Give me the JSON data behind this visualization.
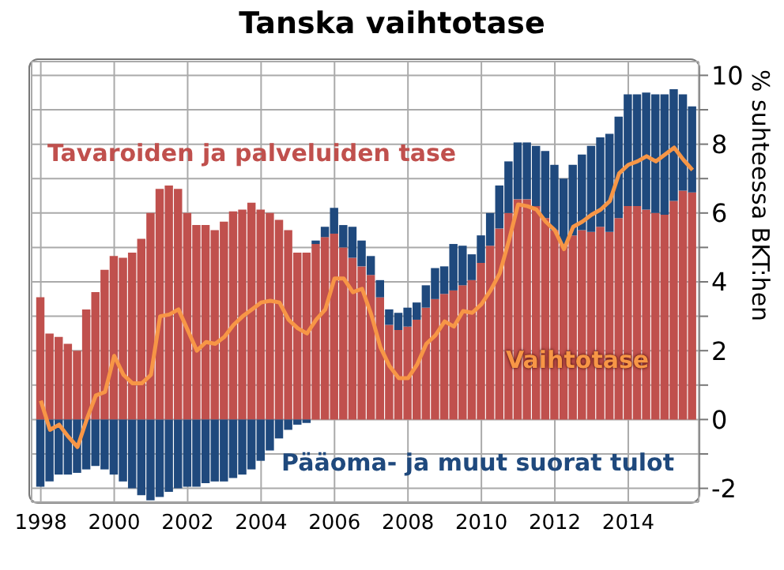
{
  "chart_data": {
    "type": "bar",
    "title": "Tanska vaihtotase",
    "ylabel": "% suhteessa BKT:hen",
    "stacked": true,
    "grid": true,
    "legend": false,
    "x": [
      "1998-01",
      "1998-04",
      "1998-07",
      "1998-10",
      "1999-01",
      "1999-04",
      "1999-07",
      "1999-10",
      "2000-01",
      "2000-04",
      "2000-07",
      "2000-10",
      "2001-01",
      "2001-04",
      "2001-07",
      "2001-10",
      "2002-01",
      "2002-04",
      "2002-07",
      "2002-10",
      "2003-01",
      "2003-04",
      "2003-07",
      "2003-10",
      "2004-01",
      "2004-04",
      "2004-07",
      "2004-10",
      "2005-01",
      "2005-04",
      "2005-07",
      "2005-10",
      "2006-01",
      "2006-04",
      "2006-07",
      "2006-10",
      "2007-01",
      "2007-04",
      "2007-07",
      "2007-10",
      "2008-01",
      "2008-04",
      "2008-07",
      "2008-10",
      "2009-01",
      "2009-04",
      "2009-07",
      "2009-10",
      "2010-01",
      "2010-04",
      "2010-07",
      "2010-10",
      "2011-01",
      "2011-04",
      "2011-07",
      "2011-10",
      "2012-01",
      "2012-04",
      "2012-07",
      "2012-10",
      "2013-01",
      "2013-04",
      "2013-07",
      "2013-10",
      "2014-01",
      "2014-04",
      "2014-07",
      "2014-10",
      "2015-01",
      "2015-04",
      "2015-07",
      "2015-10"
    ],
    "xlim": [
      "1997-10",
      "2015-12"
    ],
    "xticks": [
      "1998",
      "2000",
      "2002",
      "2004",
      "2006",
      "2008",
      "2010",
      "2012",
      "2014"
    ],
    "ylim": [
      -2.4,
      10.4
    ],
    "yticks": [
      {
        "value": -2,
        "label": "-2"
      },
      {
        "value": -1,
        "label": null
      },
      0,
      {
        "value": 1,
        "label": null
      },
      2,
      {
        "value": 3,
        "label": null
      },
      4,
      {
        "value": 5,
        "label": null
      },
      6,
      {
        "value": 7,
        "label": null
      },
      8,
      {
        "value": 9,
        "label": null
      },
      10
    ],
    "series": [
      {
        "name": "Tavaroiden ja palveluiden tase",
        "type": "bar",
        "color": "#c0504d",
        "values": [
          3.55,
          2.5,
          2.4,
          2.2,
          2.0,
          3.2,
          3.7,
          4.35,
          4.75,
          4.7,
          4.85,
          5.25,
          6.0,
          6.7,
          6.8,
          6.7,
          6.0,
          5.65,
          5.65,
          5.5,
          5.75,
          6.05,
          6.1,
          6.3,
          6.1,
          6.0,
          5.8,
          5.5,
          4.85,
          4.85,
          5.1,
          5.3,
          5.4,
          5.0,
          4.7,
          4.45,
          4.2,
          3.55,
          2.75,
          2.6,
          2.7,
          2.9,
          3.25,
          3.5,
          3.65,
          3.75,
          3.9,
          4.05,
          4.55,
          5.05,
          5.55,
          6.0,
          6.4,
          6.4,
          6.2,
          5.85,
          5.5,
          5.1,
          5.35,
          5.5,
          5.45,
          5.6,
          5.45,
          5.85,
          6.2,
          6.2,
          6.1,
          6.0,
          5.95,
          6.35,
          6.65,
          6.6
        ]
      },
      {
        "name": "Pääoma- ja muut suorat tulot",
        "type": "bar",
        "color": "#1f497d",
        "values": [
          -1.95,
          -1.8,
          -1.6,
          -1.6,
          -1.55,
          -1.45,
          -1.35,
          -1.45,
          -1.6,
          -1.8,
          -2.0,
          -2.2,
          -2.35,
          -2.25,
          -2.1,
          -2.0,
          -1.95,
          -1.95,
          -1.85,
          -1.8,
          -1.8,
          -1.7,
          -1.6,
          -1.45,
          -1.2,
          -0.9,
          -0.55,
          -0.3,
          -0.15,
          -0.1,
          0.1,
          0.3,
          0.75,
          0.65,
          0.9,
          0.75,
          0.55,
          0.5,
          0.45,
          0.5,
          0.55,
          0.5,
          0.65,
          0.9,
          0.8,
          1.35,
          1.15,
          0.75,
          0.8,
          0.95,
          1.25,
          1.5,
          1.65,
          1.65,
          1.75,
          1.95,
          1.9,
          1.9,
          2.05,
          2.2,
          2.5,
          2.6,
          2.85,
          2.95,
          3.25,
          3.25,
          3.4,
          3.45,
          3.5,
          3.25,
          2.8,
          2.5
        ]
      },
      {
        "name": "Vaihtotase",
        "type": "line",
        "color": "#f79646",
        "values": [
          0.55,
          -0.3,
          -0.15,
          -0.5,
          -0.8,
          0,
          0.7,
          0.8,
          1.85,
          1.3,
          1.05,
          1.05,
          1.3,
          3.0,
          3.05,
          3.2,
          2.6,
          2.0,
          2.25,
          2.2,
          2.4,
          2.75,
          3.0,
          3.2,
          3.4,
          3.45,
          3.4,
          2.9,
          2.65,
          2.5,
          2.9,
          3.2,
          4.1,
          4.1,
          3.7,
          3.8,
          3.05,
          2.1,
          1.55,
          1.2,
          1.2,
          1.6,
          2.2,
          2.45,
          2.85,
          2.7,
          3.15,
          3.1,
          3.35,
          3.75,
          4.25,
          5.2,
          6.25,
          6.2,
          6.1,
          5.75,
          5.5,
          4.95,
          5.6,
          5.75,
          5.95,
          6.1,
          6.35,
          7.15,
          7.4,
          7.5,
          7.65,
          7.5,
          7.7,
          7.9,
          7.55,
          7.25
        ]
      }
    ]
  }
}
